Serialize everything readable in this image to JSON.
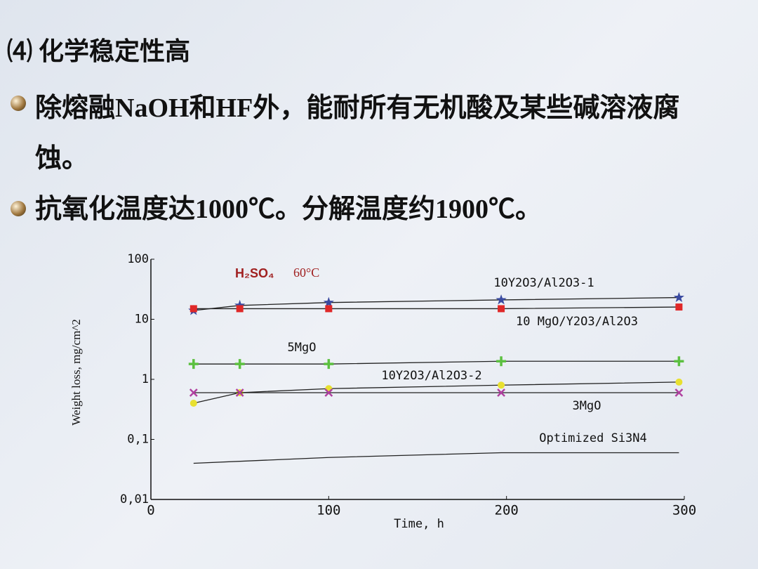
{
  "slide": {
    "heading": "⑷ 化学稳定性高",
    "bullets": [
      "除熔融NaOH和HF外，能耐所有无机酸及某些碱溶液腐蚀。",
      "抗氧化温度达1000℃。分解温度约1900℃。"
    ]
  },
  "chart_data": {
    "type": "line",
    "annotation": {
      "formula": "H₂SO₄",
      "temperature": "60°C"
    },
    "x_label": "Time, h",
    "y_label": "Weight loss, mg/cm^2",
    "log_y": true,
    "xlim": [
      0,
      300
    ],
    "xticks": [
      0,
      100,
      200,
      300
    ],
    "ylim": [
      0.01,
      100
    ],
    "yticks": [
      {
        "value": 0.01,
        "label": "0,01"
      },
      {
        "value": 0.1,
        "label": "0,1"
      },
      1,
      10,
      100
    ],
    "series": [
      {
        "name": "10Y2O3/Al2O3-1",
        "color": "#3a4aa0",
        "marker": "star",
        "x": [
          24,
          50,
          100,
          197,
          297
        ],
        "values": [
          14,
          17,
          19,
          21,
          23
        ]
      },
      {
        "name": "10 MgO/Y2O3/Al2O3",
        "color": "#e02828",
        "marker": "square",
        "x": [
          24,
          50,
          100,
          197,
          297
        ],
        "values": [
          15,
          15,
          15,
          15,
          16
        ]
      },
      {
        "name": "5MgO",
        "color": "#5cc040",
        "marker": "plus",
        "x": [
          24,
          50,
          100,
          197,
          297
        ],
        "values": [
          1.8,
          1.8,
          1.8,
          2.0,
          2.0
        ]
      },
      {
        "name": "10Y2O3/Al2O3-2",
        "color": "#e8e030",
        "marker": "circle",
        "x": [
          24,
          50,
          100,
          197,
          297
        ],
        "values": [
          0.4,
          0.6,
          0.7,
          0.8,
          0.9
        ]
      },
      {
        "name": "3MgO",
        "color": "#b040a0",
        "marker": "cross",
        "x": [
          24,
          50,
          100,
          197,
          297
        ],
        "values": [
          0.6,
          0.6,
          0.6,
          0.6,
          0.6
        ]
      },
      {
        "name": "Optimized Si3N4",
        "color": "#222222",
        "marker": "none",
        "x": [
          24,
          100,
          197,
          297
        ],
        "values": [
          0.04,
          0.05,
          0.06,
          0.06
        ]
      }
    ]
  }
}
